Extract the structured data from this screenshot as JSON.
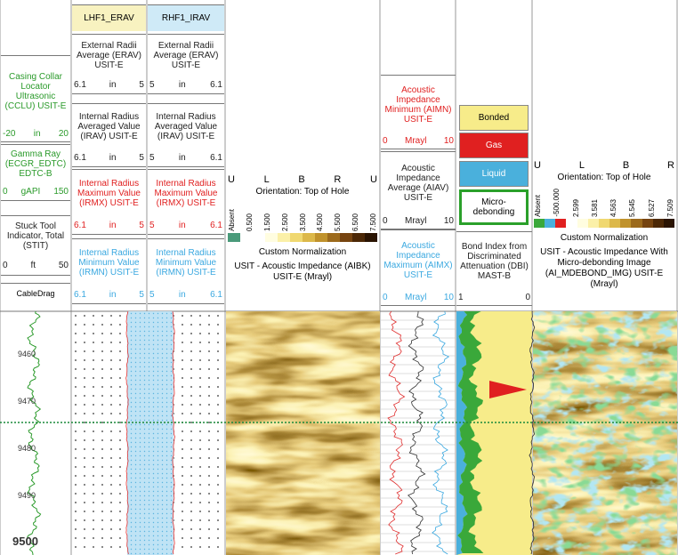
{
  "depth_track": {
    "curves": [
      {
        "label": "Casing Collar Locator Ultrasonic (CCLU) USIT-E",
        "min": "-20",
        "unit": "in",
        "max": "20"
      },
      {
        "label": "Gamma Ray (ECGR_EDTC) EDTC-B",
        "min": "0",
        "unit": "gAPI",
        "max": "150"
      },
      {
        "label": "Stuck Tool Indicator, Total (STIT)",
        "min": "0",
        "unit": "ft",
        "max": "50"
      }
    ],
    "cable_label": "CableDrag",
    "depths": [
      "9460",
      "9470",
      "9480",
      "9490",
      "9500"
    ]
  },
  "left_track": {
    "title": "LHF1_ERAV",
    "curves": [
      {
        "label": "External Radii Average (ERAV) USIT-E",
        "min": "6.1",
        "unit": "in",
        "max": "5"
      },
      {
        "label": "Internal Radius Averaged Value (IRAV) USIT-E",
        "min": "6.1",
        "unit": "in",
        "max": "5"
      },
      {
        "label": "Internal Radius Maximum Value (IRMX) USIT-E",
        "min": "6.1",
        "unit": "in",
        "max": "5"
      },
      {
        "label": "Internal Radius Minimum Value (IRMN) USIT-E",
        "min": "6.1",
        "unit": "in",
        "max": "5"
      }
    ]
  },
  "right_track": {
    "title": "RHF1_IRAV",
    "curves": [
      {
        "label": "External Radii Average (ERAV) USIT-E",
        "min": "5",
        "unit": "in",
        "max": "6.1"
      },
      {
        "label": "Internal Radius Averaged Value (IRAV) USIT-E",
        "min": "5",
        "unit": "in",
        "max": "6.1"
      },
      {
        "label": "Internal Radius Maximum Value (IRMX) USIT-E",
        "min": "5",
        "unit": "in",
        "max": "6.1"
      },
      {
        "label": "Internal Radius Minimum Value (IRMN) USIT-E",
        "min": "5",
        "unit": "in",
        "max": "6.1"
      }
    ]
  },
  "aibk_image": {
    "orientation_letters": [
      "U",
      "L",
      "B",
      "R",
      "U"
    ],
    "orientation": "Orientation: Top of Hole",
    "scale_labels": [
      "Absent",
      "0.500",
      "1.500",
      "2.500",
      "3.500",
      "4.500",
      "5.500",
      "6.500",
      "7.500"
    ],
    "normalization": "Custom Normalization",
    "title": "USIT - Acoustic Impedance (AIBK) USIT-E (Mrayl)"
  },
  "ai_track": {
    "curves": [
      {
        "label": "Acoustic Impedance Minimum (AIMN) USIT-E",
        "min": "0",
        "unit": "Mrayl",
        "max": "10"
      },
      {
        "label": "Acoustic Impedance Average (AIAV) USIT-E",
        "min": "0",
        "unit": "Mrayl",
        "max": "10"
      },
      {
        "label": "Acoustic Impedance Maximum (AIMX) USIT-E",
        "min": "0",
        "unit": "Mrayl",
        "max": "10"
      }
    ]
  },
  "bond_track": {
    "legend": [
      "Bonded",
      "Gas",
      "Liquid",
      "Micro-debonding"
    ],
    "curve": {
      "label": "Bond Index from Discriminated Attenuation (DBI) MAST-B",
      "min": "1",
      "max": "0"
    }
  },
  "mdebond_image": {
    "orientation_letters": [
      "U",
      "L",
      "B",
      "R"
    ],
    "orientation": "Orientation: Top of Hole",
    "scale_labels": [
      "Absent",
      "-500.000",
      "2.599",
      "3.581",
      "4.563",
      "5.545",
      "6.527",
      "7.509"
    ],
    "normalization": "Custom Normalization",
    "title": "USIT - Acoustic Impedance With Micro-debonding Image (AI_MDEBOND_IMG) USIT-E (Mrayl)"
  }
}
